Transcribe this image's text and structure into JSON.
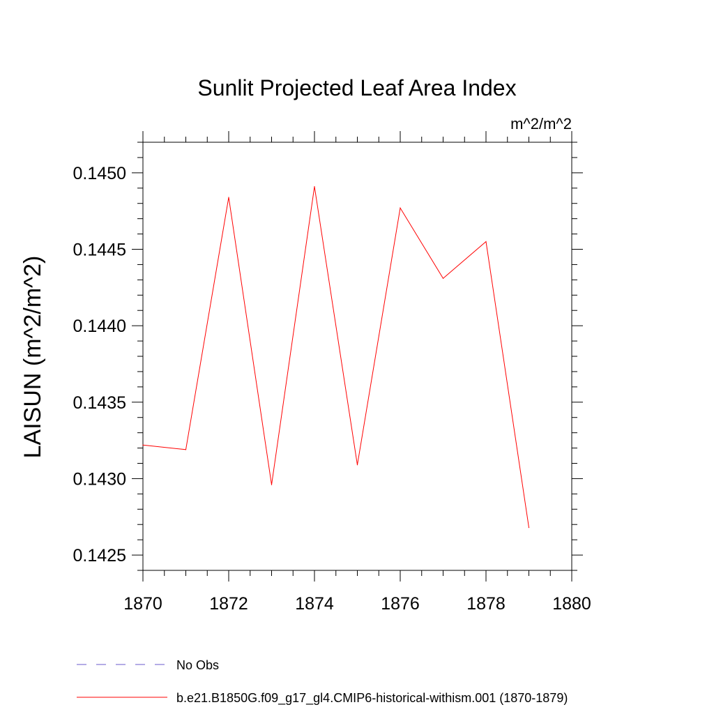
{
  "chart_data": {
    "type": "line",
    "title": "Sunlit Projected Leaf Area Index",
    "units_label": "m^2/m^2",
    "ylabel": "LAISUN  (m^2/m^2)",
    "xlabel": "",
    "xlim": [
      1870,
      1880
    ],
    "ylim": [
      0.1424,
      0.1452
    ],
    "x_ticks": [
      1870,
      1872,
      1874,
      1876,
      1878,
      1880
    ],
    "x_tick_labels": [
      "1870",
      "1872",
      "1874",
      "1876",
      "1878",
      "1880"
    ],
    "y_ticks": [
      0.1425,
      0.143,
      0.1435,
      0.144,
      0.1445,
      0.145
    ],
    "y_tick_labels": [
      "0.1425",
      "0.1430",
      "0.1435",
      "0.1440",
      "0.1445",
      "0.1450"
    ],
    "grid": false,
    "legend_position": "bottom",
    "series": [
      {
        "name": "No Obs",
        "color": "#6a5acd",
        "dash": "dashed",
        "x": [],
        "y": []
      },
      {
        "name": "b.e21.B1850G.f09_g17_gl4.CMIP6-historical-withism.001 (1870-1879)",
        "color": "#ff0000",
        "dash": "solid",
        "x": [
          1870,
          1871,
          1872,
          1873,
          1874,
          1875,
          1876,
          1877,
          1878,
          1879
        ],
        "y": [
          0.14322,
          0.14319,
          0.14484,
          0.14296,
          0.14491,
          0.14309,
          0.14477,
          0.14431,
          0.14455,
          0.14268
        ]
      }
    ]
  }
}
